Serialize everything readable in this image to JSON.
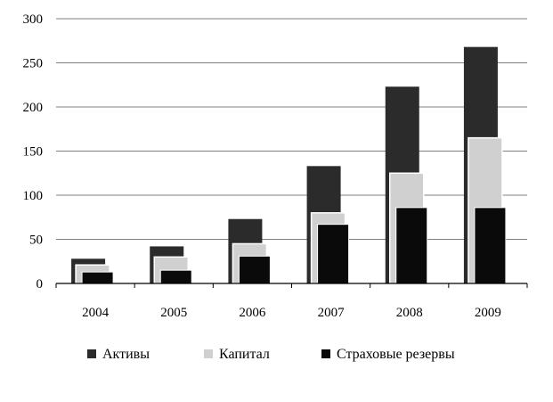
{
  "chart_data": {
    "type": "bar",
    "categories": [
      "2004",
      "2005",
      "2006",
      "2007",
      "2008",
      "2009"
    ],
    "series": [
      {
        "name": "Активы",
        "color": "#2b2b2b",
        "values": [
          28,
          42,
          73,
          133,
          223,
          268
        ]
      },
      {
        "name": "Капитал",
        "color": "#d0d0d0",
        "values": [
          21,
          30,
          45,
          80,
          125,
          165
        ]
      },
      {
        "name": "Страховые резервы",
        "color": "#0a0a0a",
        "values": [
          13,
          15,
          31,
          67,
          86,
          86
        ]
      }
    ],
    "title": "",
    "xlabel": "",
    "ylabel": "",
    "ylim": [
      0,
      300
    ],
    "yticks": [
      "0",
      "50",
      "100",
      "150",
      "200",
      "250",
      "300"
    ],
    "grid": true,
    "legend_position": "bottom"
  }
}
